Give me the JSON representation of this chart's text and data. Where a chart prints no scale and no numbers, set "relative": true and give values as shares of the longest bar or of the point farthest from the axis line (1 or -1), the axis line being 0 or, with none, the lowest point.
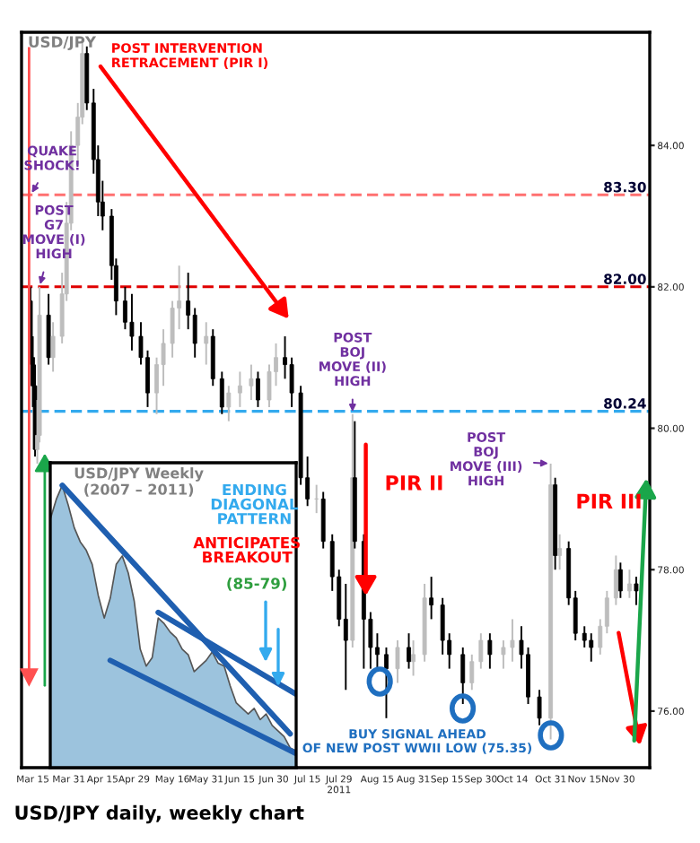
{
  "chart_data": [
    {
      "type": "candlestick",
      "title": "USD/JPY",
      "x": [
        "2011-03-14",
        "2011-03-15",
        "2011-03-16",
        "2011-03-17",
        "2011-03-18",
        "2011-03-22",
        "2011-03-24",
        "2011-03-28",
        "2011-03-30",
        "2011-04-01",
        "2011-04-04",
        "2011-04-06",
        "2011-04-08",
        "2011-04-11",
        "2011-04-13",
        "2011-04-15",
        "2011-04-19",
        "2011-04-21",
        "2011-04-25",
        "2011-04-28",
        "2011-05-02",
        "2011-05-05",
        "2011-05-09",
        "2011-05-12",
        "2011-05-16",
        "2011-05-19",
        "2011-05-23",
        "2011-05-26",
        "2011-05-31",
        "2011-06-03",
        "2011-06-07",
        "2011-06-10",
        "2011-06-15",
        "2011-06-20",
        "2011-06-23",
        "2011-06-28",
        "2011-07-01",
        "2011-07-05",
        "2011-07-08",
        "2011-07-12",
        "2011-07-15",
        "2011-07-19",
        "2011-07-22",
        "2011-07-26",
        "2011-07-29",
        "2011-08-01",
        "2011-08-04",
        "2011-08-05",
        "2011-08-09",
        "2011-08-12",
        "2011-08-15",
        "2011-08-19",
        "2011-08-24",
        "2011-08-29",
        "2011-08-31",
        "2011-09-05",
        "2011-09-08",
        "2011-09-13",
        "2011-09-16",
        "2011-09-22",
        "2011-09-26",
        "2011-09-30",
        "2011-10-04",
        "2011-10-10",
        "2011-10-14",
        "2011-10-18",
        "2011-10-21",
        "2011-10-26",
        "2011-10-31",
        "2011-11-02",
        "2011-11-04",
        "2011-11-08",
        "2011-11-11",
        "2011-11-15",
        "2011-11-18",
        "2011-11-22",
        "2011-11-25",
        "2011-11-29",
        "2011-12-01",
        "2011-12-05",
        "2011-12-08"
      ],
      "ohlc": [
        [
          81.8,
          82.0,
          80.9,
          81.0
        ],
        [
          81.0,
          81.3,
          80.3,
          80.6
        ],
        [
          80.6,
          80.9,
          79.6,
          79.7
        ],
        [
          79.7,
          80.4,
          79.5,
          79.9
        ],
        [
          79.9,
          82.0,
          79.8,
          81.6
        ],
        [
          81.6,
          81.9,
          80.9,
          81.0
        ],
        [
          81.0,
          81.5,
          80.8,
          81.3
        ],
        [
          81.3,
          82.2,
          81.2,
          81.9
        ],
        [
          81.9,
          83.2,
          81.8,
          82.9
        ],
        [
          82.9,
          84.2,
          82.8,
          84.0
        ],
        [
          84.0,
          84.6,
          83.7,
          84.4
        ],
        [
          84.4,
          85.5,
          84.3,
          85.3
        ],
        [
          85.3,
          85.4,
          84.5,
          84.6
        ],
        [
          84.6,
          84.8,
          83.6,
          83.8
        ],
        [
          83.8,
          84.0,
          83.0,
          83.2
        ],
        [
          83.2,
          83.5,
          82.8,
          83.0
        ],
        [
          83.0,
          83.1,
          82.1,
          82.3
        ],
        [
          82.3,
          82.4,
          81.6,
          81.8
        ],
        [
          81.8,
          82.0,
          81.4,
          81.5
        ],
        [
          81.5,
          81.9,
          81.1,
          81.3
        ],
        [
          81.3,
          81.5,
          80.9,
          81.0
        ],
        [
          81.0,
          81.1,
          80.3,
          80.5
        ],
        [
          80.5,
          81.0,
          80.2,
          80.9
        ],
        [
          80.9,
          81.4,
          80.6,
          81.2
        ],
        [
          81.2,
          81.8,
          81.0,
          81.7
        ],
        [
          81.7,
          82.3,
          81.4,
          81.8
        ],
        [
          81.8,
          82.2,
          81.4,
          81.6
        ],
        [
          81.6,
          81.7,
          81.0,
          81.2
        ],
        [
          81.2,
          81.5,
          80.9,
          81.3
        ],
        [
          81.3,
          81.4,
          80.6,
          80.7
        ],
        [
          80.7,
          80.8,
          80.2,
          80.3
        ],
        [
          80.3,
          80.6,
          80.1,
          80.5
        ],
        [
          80.5,
          80.8,
          80.3,
          80.6
        ],
        [
          80.6,
          80.9,
          80.4,
          80.7
        ],
        [
          80.7,
          80.8,
          80.3,
          80.4
        ],
        [
          80.4,
          80.9,
          80.3,
          80.8
        ],
        [
          80.8,
          81.2,
          80.6,
          81.0
        ],
        [
          81.0,
          81.3,
          80.7,
          80.9
        ],
        [
          80.9,
          81.0,
          80.3,
          80.5
        ],
        [
          80.5,
          80.6,
          79.2,
          79.3
        ],
        [
          79.3,
          79.6,
          78.9,
          79.0
        ],
        [
          79.0,
          79.2,
          78.8,
          79.0
        ],
        [
          79.0,
          79.1,
          78.3,
          78.4
        ],
        [
          78.4,
          78.5,
          77.7,
          77.9
        ],
        [
          77.9,
          78.0,
          77.2,
          77.3
        ],
        [
          77.3,
          77.8,
          76.3,
          77.0
        ],
        [
          77.0,
          80.2,
          76.9,
          79.3
        ],
        [
          79.3,
          80.1,
          78.3,
          78.4
        ],
        [
          78.4,
          78.5,
          76.6,
          77.3
        ],
        [
          77.3,
          77.4,
          76.6,
          76.9
        ],
        [
          76.9,
          77.1,
          76.6,
          76.8
        ],
        [
          76.8,
          76.9,
          75.9,
          76.6
        ],
        [
          76.6,
          77.0,
          76.4,
          76.9
        ],
        [
          76.9,
          77.1,
          76.6,
          76.7
        ],
        [
          76.7,
          77.0,
          76.5,
          76.8
        ],
        [
          76.8,
          77.8,
          76.7,
          77.6
        ],
        [
          77.6,
          77.9,
          77.3,
          77.5
        ],
        [
          77.5,
          77.6,
          76.8,
          77.0
        ],
        [
          77.0,
          77.1,
          76.6,
          76.8
        ],
        [
          76.8,
          76.9,
          76.1,
          76.4
        ],
        [
          76.4,
          76.8,
          76.3,
          76.7
        ],
        [
          76.7,
          77.1,
          76.6,
          77.0
        ],
        [
          77.0,
          77.1,
          76.6,
          76.8
        ],
        [
          76.8,
          77.0,
          76.6,
          76.9
        ],
        [
          76.9,
          77.3,
          76.7,
          77.0
        ],
        [
          77.0,
          77.2,
          76.6,
          76.8
        ],
        [
          76.8,
          76.9,
          76.1,
          76.2
        ],
        [
          76.2,
          76.3,
          75.8,
          75.9
        ],
        [
          75.9,
          79.5,
          75.6,
          79.2
        ],
        [
          79.2,
          79.3,
          78.0,
          78.2
        ],
        [
          78.2,
          78.5,
          78.0,
          78.3
        ],
        [
          78.3,
          78.4,
          77.5,
          77.6
        ],
        [
          77.6,
          77.7,
          77.0,
          77.1
        ],
        [
          77.1,
          77.2,
          76.9,
          77.0
        ],
        [
          77.0,
          77.1,
          76.7,
          76.9
        ],
        [
          76.9,
          77.3,
          76.8,
          77.2
        ],
        [
          77.2,
          77.7,
          77.1,
          77.6
        ],
        [
          77.6,
          78.2,
          77.5,
          78.0
        ],
        [
          78.0,
          78.1,
          77.6,
          77.7
        ],
        [
          77.7,
          78.0,
          77.6,
          77.8
        ],
        [
          77.8,
          77.9,
          77.5,
          77.7
        ]
      ],
      "xlim": [
        "2011-03-10",
        "2011-12-14"
      ],
      "xticks": [
        {
          "value": "2011-03-15",
          "label": "Mar 15"
        },
        {
          "value": "2011-03-31",
          "label": "Mar 31"
        },
        {
          "value": "2011-04-15",
          "label": "Apr 15"
        },
        {
          "value": "2011-04-29",
          "label": "Apr 29"
        },
        {
          "value": "2011-05-16",
          "label": "May 16"
        },
        {
          "value": "2011-05-31",
          "label": "May 31"
        },
        {
          "value": "2011-06-15",
          "label": "Jun 15"
        },
        {
          "value": "2011-06-30",
          "label": "Jun 30"
        },
        {
          "value": "2011-07-15",
          "label": "Jul 15"
        },
        {
          "value": "2011-07-29",
          "label": "Jul 29\n2011"
        },
        {
          "value": "2011-08-15",
          "label": "Aug 15"
        },
        {
          "value": "2011-08-31",
          "label": "Aug 31"
        },
        {
          "value": "2011-09-15",
          "label": "Sep 15"
        },
        {
          "value": "2011-09-30",
          "label": "Sep 30"
        },
        {
          "value": "2011-10-14",
          "label": "Oct 14"
        },
        {
          "value": "2011-10-31",
          "label": "Oct 31"
        },
        {
          "value": "2011-11-15",
          "label": "Nov 15"
        },
        {
          "value": "2011-11-30",
          "label": "Nov 30"
        }
      ],
      "ylim": [
        75.2,
        85.6
      ],
      "yticks": [
        {
          "value": 76,
          "label": "76.00"
        },
        {
          "value": 78,
          "label": "78.00"
        },
        {
          "value": 80,
          "label": "80.00"
        },
        {
          "value": 82,
          "label": "82.00"
        },
        {
          "value": 84,
          "label": "84.00"
        }
      ],
      "ref_lines": [
        {
          "axis": "y",
          "value": 83.3,
          "label": "83.30",
          "color": "#ff7070",
          "line_style": "dashed"
        },
        {
          "axis": "y",
          "value": 82.0,
          "label": "82.00",
          "color": "#e00000",
          "line_style": "dashed"
        },
        {
          "axis": "y",
          "value": 80.24,
          "label": "80.24",
          "color": "#33aaee",
          "line_style": "dashed"
        }
      ],
      "annotations": [
        {
          "text": "POST INTERVENTION\nRETRACEMENT (PIR I)",
          "x": "2011-04-06",
          "y": 85.5
        },
        {
          "text": "QUAKE\nSHOCK!",
          "x": "2011-03-14",
          "y": 83.3
        },
        {
          "text": "POST\nG7\nMOVE (I)\nHIGH",
          "x": "2011-03-18",
          "y": 82.0
        },
        {
          "text": "POST\nBOJ\nMOVE (II)\nHIGH",
          "x": "2011-08-04",
          "y": 80.2
        },
        "PIR II",
        {
          "text": "POST\nBOJ\nMOVE (III)\nHIGH",
          "x": "2011-10-31",
          "y": 79.5
        },
        "PIR III",
        "BUY SIGNAL AHEAD\nOF NEW POST WWII LOW (75.35)",
        "USD/JPY daily, weekly chart"
      ],
      "grid": false,
      "legend": false
    },
    {
      "type": "area",
      "relative": true,
      "title": "USD/JPY Weekly\n(2007 – 2011)",
      "categories": [
        null,
        null,
        null,
        null,
        null,
        null,
        null,
        null,
        null,
        null,
        null,
        null,
        null,
        null,
        null,
        null,
        null,
        null,
        null,
        null,
        null,
        null,
        null,
        null,
        null,
        null,
        null,
        null,
        null,
        null,
        null,
        null,
        null,
        null,
        null,
        null,
        null,
        null,
        null,
        null,
        null,
        null
      ],
      "series": [
        {
          "type": "area",
          "color": "#9cc3dd",
          "values": [
            0.88,
            0.95,
            1.0,
            0.93,
            0.85,
            0.8,
            0.77,
            0.72,
            0.61,
            0.53,
            0.6,
            0.72,
            0.75,
            0.69,
            0.59,
            0.42,
            0.36,
            0.39,
            0.53,
            0.51,
            0.48,
            0.46,
            0.42,
            0.4,
            0.34,
            0.36,
            0.38,
            0.41,
            0.37,
            0.36,
            0.29,
            0.23,
            0.21,
            0.19,
            0.21,
            0.17,
            0.19,
            0.15,
            0.13,
            0.11,
            0.07,
            0.06
          ]
        },
        {
          "type": "line",
          "color": "#1f5fb0",
          "values": [
            null,
            null,
            1.0,
            null,
            null,
            null,
            null,
            null,
            null,
            null,
            null,
            null,
            null,
            null,
            null,
            null,
            null,
            null,
            null,
            null,
            null,
            null,
            null,
            null,
            null,
            null,
            null,
            null,
            null,
            null,
            null,
            null,
            null,
            null,
            null,
            null,
            null,
            null,
            null,
            null,
            0.12,
            null
          ]
        },
        {
          "type": "line",
          "color": "#1f5fb0",
          "values": [
            null,
            null,
            null,
            null,
            null,
            null,
            null,
            null,
            null,
            null,
            null,
            null,
            null,
            null,
            null,
            null,
            null,
            null,
            0.55,
            null,
            null,
            null,
            null,
            null,
            null,
            null,
            null,
            null,
            null,
            null,
            null,
            null,
            null,
            null,
            null,
            null,
            null,
            null,
            null,
            null,
            null,
            0.26
          ]
        },
        {
          "type": "line",
          "color": "#1f5fb0",
          "values": [
            null,
            null,
            null,
            null,
            null,
            null,
            null,
            null,
            null,
            null,
            0.38,
            null,
            null,
            null,
            null,
            null,
            null,
            null,
            null,
            null,
            null,
            null,
            null,
            null,
            null,
            null,
            null,
            null,
            null,
            null,
            null,
            null,
            null,
            null,
            null,
            null,
            null,
            null,
            null,
            null,
            null,
            0.05
          ]
        }
      ],
      "annotations": [
        "ENDING\nDIAGONAL\nPATTERN",
        "ANTICIPATES\nBREAKOUT",
        "(85-79)"
      ]
    }
  ]
}
